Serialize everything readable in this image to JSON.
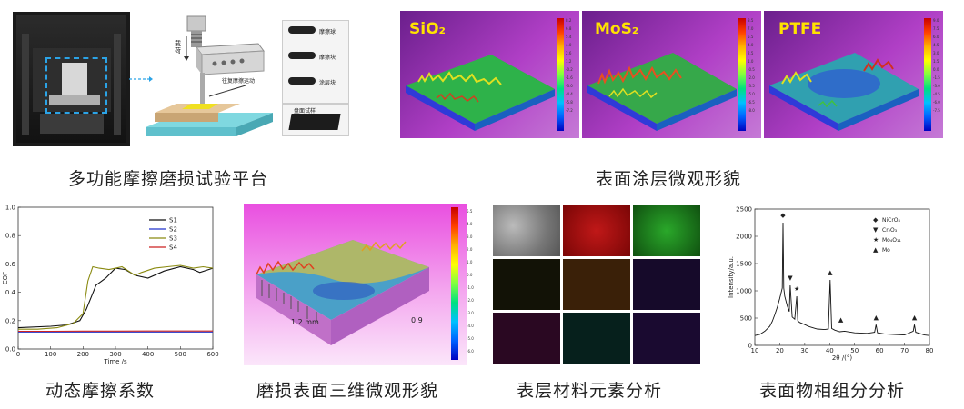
{
  "captions": {
    "platform": "多功能摩擦磨损试验平台",
    "coating": "表面涂层微观形貌",
    "cof": "动态摩擦系数",
    "wear3d": "磨损表面三维微观形貌",
    "eds": "表层材料元素分析",
    "xrd": "表面物相组分分析"
  },
  "apparatus": {
    "load_label": "载荷",
    "motion_label": "往复摩擦运动",
    "samples": [
      "摩擦球",
      "摩擦块",
      "涂层块"
    ],
    "base_sample": "盘面试样"
  },
  "coating_samples": [
    {
      "label": "SiO₂",
      "colorbar_ticks": [
        "8.2",
        "6.8",
        "5.4",
        "4.0",
        "2.6",
        "1.2",
        "-0.2",
        "-1.6",
        "-3.0",
        "-4.4",
        "-5.8",
        "-7.2"
      ]
    },
    {
      "label": "MoS₂",
      "colorbar_ticks": [
        "8.5",
        "7.0",
        "5.5",
        "4.0",
        "2.5",
        "1.0",
        "-0.5",
        "-2.0",
        "-3.5",
        "-5.0",
        "-6.5",
        "-8.0"
      ]
    },
    {
      "label": "PTFE",
      "colorbar_ticks": [
        "9.0",
        "7.5",
        "6.0",
        "4.5",
        "3.0",
        "1.5",
        "0.0",
        "-1.5",
        "-3.0",
        "-4.5",
        "-6.0",
        "-7.5"
      ]
    }
  ],
  "wear3d": {
    "xlabel_left": "1.2 mm",
    "xlabel_right": "0.9",
    "colorbar_ticks": [
      "5.5",
      "4.0",
      "3.0",
      "2.0",
      "1.0",
      "0.0",
      "-1.0",
      "-2.0",
      "-3.0",
      "-4.0",
      "-5.0",
      "-6.0"
    ]
  },
  "chart_data": [
    {
      "type": "line",
      "xlabel": "Time /s",
      "ylabel": "COF",
      "xlim": [
        0,
        600
      ],
      "ylim": [
        0,
        1.0
      ],
      "xticks": [
        "0",
        "100",
        "200",
        "300",
        "400",
        "500",
        "600"
      ],
      "yticks": [
        "0.0",
        "0.2",
        "0.4",
        "0.6",
        "0.8",
        "1.0"
      ],
      "legend_position": "top-right",
      "series": [
        {
          "name": "S1",
          "color": "#111111",
          "x": [
            0,
            100,
            150,
            190,
            210,
            240,
            270,
            300,
            330,
            360,
            400,
            450,
            500,
            540,
            560,
            600
          ],
          "values": [
            0.15,
            0.16,
            0.17,
            0.2,
            0.28,
            0.45,
            0.5,
            0.57,
            0.56,
            0.52,
            0.5,
            0.55,
            0.58,
            0.56,
            0.54,
            0.57
          ]
        },
        {
          "name": "S2",
          "color": "#2233cc",
          "x": [
            0,
            100,
            200,
            300,
            400,
            500,
            600
          ],
          "values": [
            0.12,
            0.12,
            0.12,
            0.12,
            0.12,
            0.12,
            0.12
          ]
        },
        {
          "name": "S3",
          "color": "#8a8a10",
          "x": [
            0,
            60,
            120,
            170,
            200,
            215,
            230,
            250,
            280,
            300,
            320,
            340,
            360,
            380,
            420,
            460,
            500,
            540,
            570,
            600
          ],
          "values": [
            0.14,
            0.14,
            0.15,
            0.18,
            0.25,
            0.48,
            0.58,
            0.57,
            0.56,
            0.57,
            0.58,
            0.55,
            0.52,
            0.54,
            0.57,
            0.58,
            0.59,
            0.57,
            0.58,
            0.57
          ]
        },
        {
          "name": "S4",
          "color": "#cc2222",
          "x": [
            0,
            100,
            200,
            300,
            400,
            500,
            600
          ],
          "values": [
            0.125,
            0.125,
            0.126,
            0.126,
            0.127,
            0.127,
            0.127
          ]
        }
      ]
    },
    {
      "type": "line",
      "xlabel": "2θ /(°)",
      "ylabel": "Intensity/a.u.",
      "xlim": [
        10,
        80
      ],
      "ylim": [
        0,
        2500
      ],
      "xticks": [
        "10",
        "20",
        "30",
        "40",
        "50",
        "60",
        "70",
        "80"
      ],
      "yticks": [
        "0",
        "500",
        "1000",
        "1500",
        "2000",
        "2500"
      ],
      "legend_position": "top-right",
      "legend": [
        {
          "marker": "◆",
          "label": "NiCrO₄"
        },
        {
          "marker": "▼",
          "label": "Cr₂O₃"
        },
        {
          "marker": "★",
          "label": "Mo₄O₁₁"
        },
        {
          "marker": "▲",
          "label": "Mo"
        }
      ],
      "series": [
        {
          "name": "",
          "color": "#111111",
          "x": [
            10,
            12,
            14,
            16,
            17,
            18,
            19,
            20,
            21,
            21.3,
            21.6,
            22,
            23,
            23.8,
            24.2,
            25,
            26,
            26.8,
            27.2,
            28,
            30,
            32,
            35,
            38,
            39.5,
            40.2,
            40.8,
            42,
            44,
            46,
            50,
            55,
            58,
            58.6,
            59.2,
            62,
            66,
            70,
            73.5,
            74,
            74.5,
            78,
            80
          ],
          "values": [
            180,
            200,
            260,
            350,
            440,
            560,
            700,
            860,
            1050,
            2250,
            1050,
            900,
            720,
            620,
            1100,
            520,
            480,
            900,
            450,
            420,
            380,
            340,
            300,
            290,
            300,
            1200,
            310,
            280,
            250,
            260,
            230,
            220,
            240,
            380,
            230,
            210,
            200,
            190,
            260,
            380,
            240,
            190,
            180
          ]
        }
      ],
      "peak_markers": [
        {
          "x": 21.3,
          "marker": "◆",
          "y": 2330
        },
        {
          "x": 24.2,
          "marker": "▼",
          "y": 1180
        },
        {
          "x": 26.8,
          "marker": "★",
          "y": 980
        },
        {
          "x": 40.2,
          "marker": "▲",
          "y": 1280
        },
        {
          "x": 44.5,
          "marker": "▲",
          "y": 420
        },
        {
          "x": 58.6,
          "marker": "▲",
          "y": 460
        },
        {
          "x": 74.0,
          "marker": "▲",
          "y": 460
        }
      ]
    }
  ]
}
